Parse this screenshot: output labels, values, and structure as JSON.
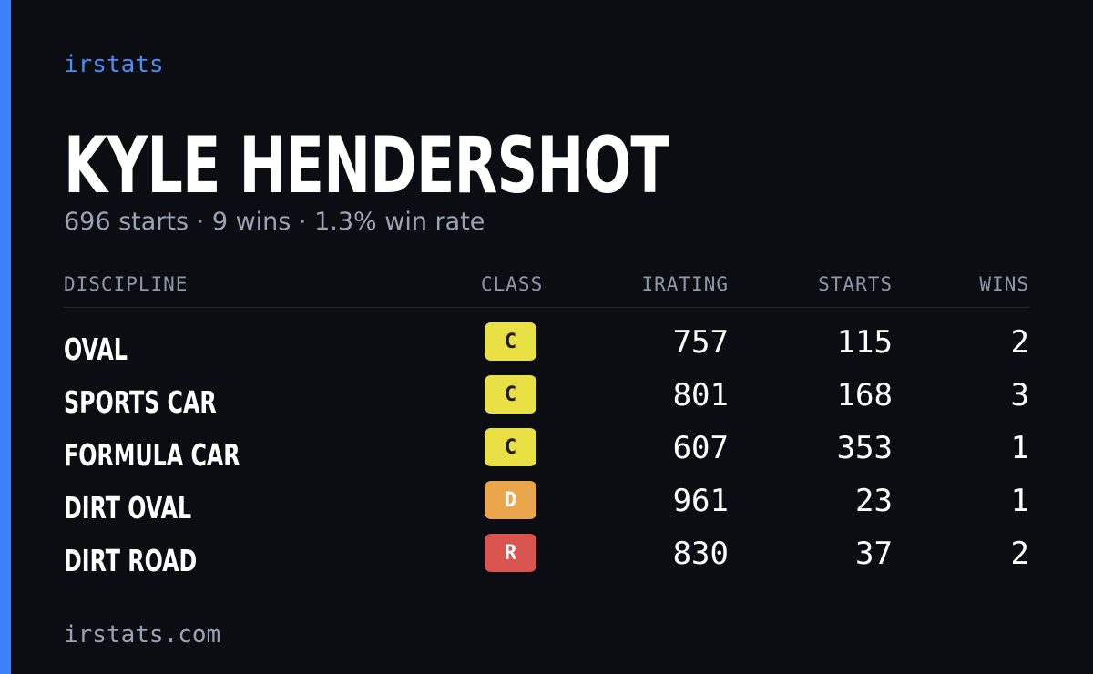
{
  "brand": "irstats",
  "driver": {
    "name": "KYLE HENDERSHOT",
    "summary": "696 starts · 9 wins · 1.3% win rate"
  },
  "table": {
    "columns": [
      "DISCIPLINE",
      "CLASS",
      "IRATING",
      "STARTS",
      "WINS"
    ],
    "rows": [
      {
        "discipline": "OVAL",
        "class": "C",
        "class_color": "#e9e046",
        "class_text_color": "#1a1a1a",
        "irating": 757,
        "starts": 115,
        "wins": 2
      },
      {
        "discipline": "SPORTS CAR",
        "class": "C",
        "class_color": "#e9e046",
        "class_text_color": "#1a1a1a",
        "irating": 801,
        "starts": 168,
        "wins": 3
      },
      {
        "discipline": "FORMULA CAR",
        "class": "C",
        "class_color": "#e9e046",
        "class_text_color": "#1a1a1a",
        "irating": 607,
        "starts": 353,
        "wins": 1
      },
      {
        "discipline": "DIRT OVAL",
        "class": "D",
        "class_color": "#eaa64c",
        "class_text_color": "#ffffff",
        "irating": 961,
        "starts": 23,
        "wins": 1
      },
      {
        "discipline": "DIRT ROAD",
        "class": "R",
        "class_color": "#d9534f",
        "class_text_color": "#ffffff",
        "irating": 830,
        "starts": 37,
        "wins": 2
      }
    ]
  },
  "footer": "irstats.com"
}
